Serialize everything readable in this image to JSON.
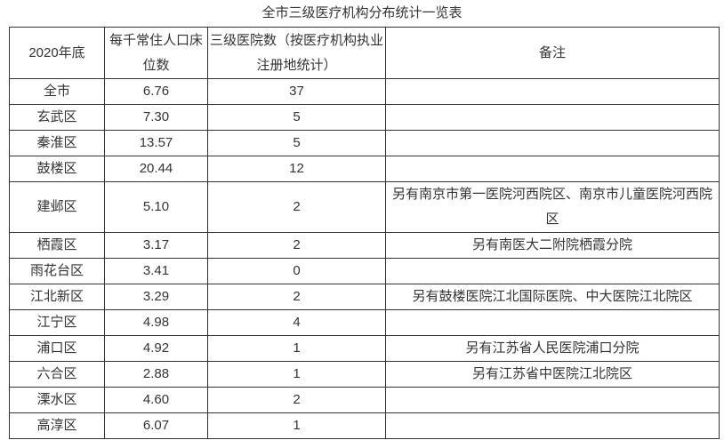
{
  "title": "全市三级医疗机构分布统计一览表",
  "headers": [
    "2020年底",
    "每千常住人口床位数",
    "三级医院数（按医疗机构执业注册地统计）",
    "备注"
  ],
  "rows": [
    {
      "area": "全市",
      "beds": "6.76",
      "hospitals": "37",
      "note": ""
    },
    {
      "area": "玄武区",
      "beds": "7.30",
      "hospitals": "5",
      "note": ""
    },
    {
      "area": "秦淮区",
      "beds": "13.57",
      "hospitals": "5",
      "note": ""
    },
    {
      "area": "鼓楼区",
      "beds": "20.44",
      "hospitals": "12",
      "note": ""
    },
    {
      "area": "建邺区",
      "beds": "5.10",
      "hospitals": "2",
      "note": "另有南京市第一医院河西院区、南京市儿童医院河西院区"
    },
    {
      "area": "栖霞区",
      "beds": "3.17",
      "hospitals": "2",
      "note": "另有南医大二附院栖霞分院"
    },
    {
      "area": "雨花台区",
      "beds": "3.41",
      "hospitals": "0",
      "note": ""
    },
    {
      "area": "江北新区",
      "beds": "3.29",
      "hospitals": "2",
      "note": "另有鼓楼医院江北国际医院、中大医院江北院区"
    },
    {
      "area": "江宁区",
      "beds": "4.98",
      "hospitals": "4",
      "note": ""
    },
    {
      "area": "浦口区",
      "beds": "4.92",
      "hospitals": "1",
      "note": "另有江苏省人民医院浦口分院"
    },
    {
      "area": "六合区",
      "beds": "2.88",
      "hospitals": "1",
      "note": "另有江苏省中医院江北院区"
    },
    {
      "area": "溧水区",
      "beds": "4.60",
      "hospitals": "2",
      "note": ""
    },
    {
      "area": "高淳区",
      "beds": "6.07",
      "hospitals": "1",
      "note": ""
    }
  ]
}
